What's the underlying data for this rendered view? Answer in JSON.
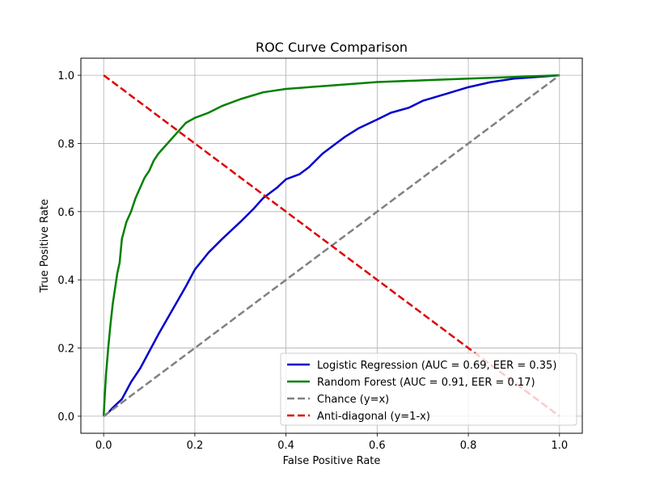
{
  "chart_data": {
    "type": "line",
    "title": "ROC Curve Comparison",
    "xlabel": "False Positive Rate",
    "ylabel": "True Positive Rate",
    "xlim": [
      -0.05,
      1.05
    ],
    "ylim": [
      -0.05,
      1.05
    ],
    "xticks": [
      0.0,
      0.2,
      0.4,
      0.6,
      0.8,
      1.0
    ],
    "yticks": [
      0.0,
      0.2,
      0.4,
      0.6,
      0.8,
      1.0
    ],
    "xtick_labels": [
      "0.0",
      "0.2",
      "0.4",
      "0.6",
      "0.8",
      "1.0"
    ],
    "ytick_labels": [
      "0.0",
      "0.2",
      "0.4",
      "0.6",
      "0.8",
      "1.0"
    ],
    "grid": true,
    "legend_position": "lower-right",
    "series": [
      {
        "name": "Logistic Regression (AUC = 0.69, EER = 0.35)",
        "color": "#0000cc",
        "style": "solid",
        "x": [
          0.0,
          0.01,
          0.02,
          0.04,
          0.06,
          0.08,
          0.1,
          0.12,
          0.15,
          0.18,
          0.2,
          0.23,
          0.26,
          0.3,
          0.33,
          0.35,
          0.38,
          0.4,
          0.43,
          0.45,
          0.48,
          0.5,
          0.53,
          0.56,
          0.6,
          0.63,
          0.67,
          0.7,
          0.75,
          0.8,
          0.85,
          0.9,
          0.95,
          1.0
        ],
        "y": [
          0.0,
          0.01,
          0.025,
          0.05,
          0.1,
          0.14,
          0.19,
          0.24,
          0.31,
          0.38,
          0.43,
          0.48,
          0.52,
          0.57,
          0.61,
          0.64,
          0.67,
          0.695,
          0.71,
          0.73,
          0.77,
          0.79,
          0.82,
          0.845,
          0.87,
          0.89,
          0.905,
          0.925,
          0.945,
          0.965,
          0.98,
          0.99,
          0.995,
          1.0
        ]
      },
      {
        "name": "Random Forest (AUC = 0.91, EER = 0.17)",
        "color": "#008000",
        "style": "solid",
        "x": [
          0.0,
          0.002,
          0.005,
          0.01,
          0.015,
          0.02,
          0.03,
          0.035,
          0.04,
          0.05,
          0.06,
          0.07,
          0.08,
          0.09,
          0.1,
          0.11,
          0.12,
          0.14,
          0.16,
          0.18,
          0.2,
          0.23,
          0.26,
          0.3,
          0.35,
          0.4,
          0.5,
          0.6,
          0.7,
          0.8,
          0.9,
          1.0
        ],
        "y": [
          0.0,
          0.05,
          0.12,
          0.2,
          0.27,
          0.33,
          0.42,
          0.45,
          0.52,
          0.57,
          0.6,
          0.64,
          0.67,
          0.7,
          0.72,
          0.75,
          0.77,
          0.8,
          0.83,
          0.86,
          0.875,
          0.89,
          0.91,
          0.93,
          0.95,
          0.96,
          0.97,
          0.98,
          0.985,
          0.99,
          0.995,
          1.0
        ]
      },
      {
        "name": "Chance (y=x)",
        "color": "#808080",
        "style": "dashed",
        "x": [
          0.0,
          1.0
        ],
        "y": [
          0.0,
          1.0
        ]
      },
      {
        "name": "Anti-diagonal (y=1-x)",
        "color": "#dd0000",
        "style": "dashed",
        "x": [
          0.0,
          1.0
        ],
        "y": [
          1.0,
          0.0
        ]
      }
    ]
  }
}
